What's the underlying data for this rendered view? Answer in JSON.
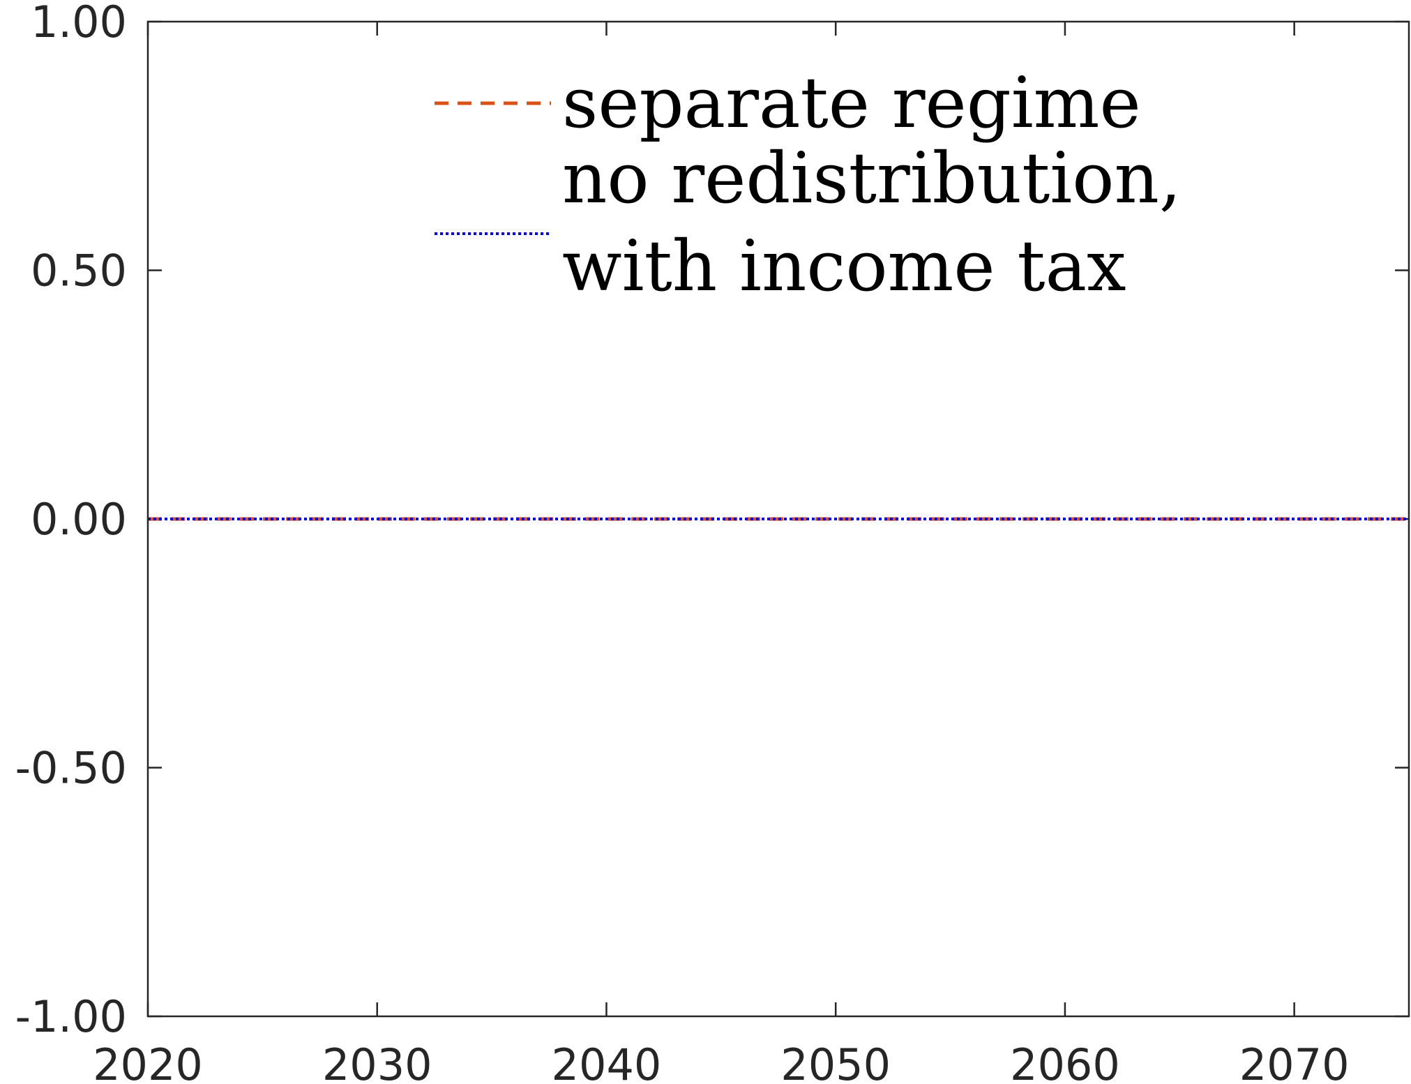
{
  "chart_data": {
    "type": "line",
    "title": "",
    "xlabel": "",
    "ylabel": "",
    "xlim": [
      2020,
      2075
    ],
    "ylim": [
      -1.0,
      1.0
    ],
    "x_ticks": [
      2020,
      2030,
      2040,
      2050,
      2060,
      2070
    ],
    "x_tick_labels": [
      "2020",
      "2030",
      "2040",
      "2050",
      "2060",
      "2070"
    ],
    "y_ticks": [
      -1.0,
      -0.5,
      0.0,
      0.5,
      1.0
    ],
    "y_tick_labels": [
      "-1.00",
      "-0.50",
      "0.00",
      "0.50",
      "1.00"
    ],
    "grid": false,
    "legend_position": "top",
    "x": [
      2020,
      2025,
      2030,
      2035,
      2040,
      2045,
      2050,
      2055,
      2060,
      2065,
      2070,
      2075
    ],
    "series": [
      {
        "name": "separate regime",
        "style": "dashed",
        "color": "#D95319",
        "values": [
          0,
          0,
          0,
          0,
          0,
          0,
          0,
          0,
          0,
          0,
          0,
          0
        ]
      },
      {
        "name_lines": [
          "no redistribution,",
          "with income tax"
        ],
        "style": "dotted",
        "color": "#0000FF",
        "values": [
          0,
          0,
          0,
          0,
          0,
          0,
          0,
          0,
          0,
          0,
          0,
          0
        ]
      }
    ]
  }
}
